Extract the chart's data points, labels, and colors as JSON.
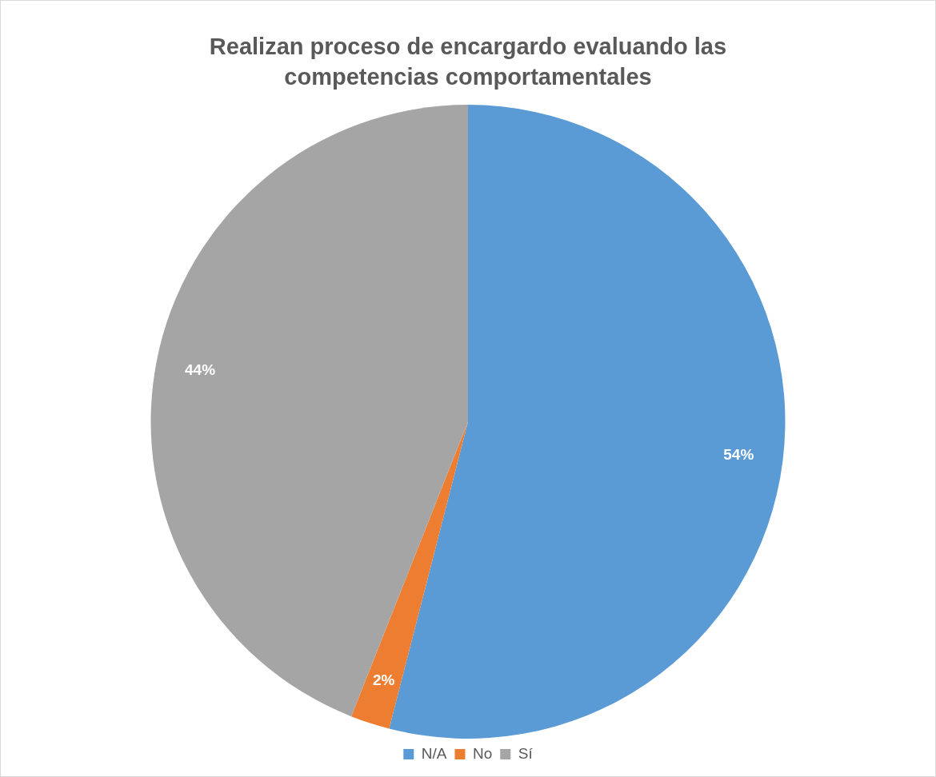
{
  "chart_data": {
    "type": "pie",
    "title": "Realizan proceso de encargardo evaluando las competencias comportamentales",
    "categories": [
      "N/A",
      "No",
      "Sí"
    ],
    "values": [
      54,
      2,
      44
    ],
    "value_labels": [
      "54%",
      "2%",
      "44%"
    ],
    "colors": [
      "#5b9bd5",
      "#ed7d31",
      "#a5a5a5"
    ],
    "legend": "bottom"
  }
}
